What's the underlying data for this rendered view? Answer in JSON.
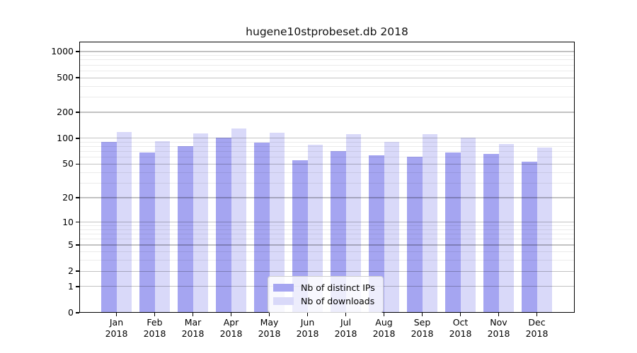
{
  "figure": {
    "title": "hugene10stprobeset.db 2018"
  },
  "chart_data": {
    "type": "bar",
    "title": "hugene10stprobeset.db 2018",
    "categories": [
      "Jan",
      "Feb",
      "Mar",
      "Apr",
      "May",
      "Jun",
      "Jul",
      "Aug",
      "Sep",
      "Oct",
      "Nov",
      "Dec"
    ],
    "year_label": "2018",
    "series": [
      {
        "name": "Nb of distinct IPs",
        "color": "#a5a5f1",
        "values": [
          91,
          68,
          81,
          101,
          89,
          55,
          71,
          63,
          61,
          69,
          66,
          53
        ]
      },
      {
        "name": "Nb of downloads",
        "color": "#d9d9f9",
        "values": [
          119,
          93,
          114,
          129,
          115,
          84,
          112,
          91,
          112,
          101,
          85,
          78
        ]
      }
    ],
    "xlabel": "",
    "ylabel": "",
    "yscale": "log1p",
    "ylim": [
      0,
      1300
    ],
    "yticks": [
      0,
      1,
      2,
      5,
      10,
      20,
      50,
      100,
      200,
      500,
      1000
    ],
    "yticks_minor": [
      3,
      4,
      6,
      7,
      8,
      9,
      30,
      40,
      60,
      70,
      80,
      90,
      300,
      400,
      600,
      700,
      800,
      900
    ],
    "grid": true,
    "legend_position": "lower center"
  },
  "colors": {
    "distinct_ips_bar": "#a5a5f1",
    "downloads_bar": "#d9d9f9",
    "major_grid": "#bfbfbf",
    "minor_grid": "#ebebeb",
    "axis": "#000000",
    "background": "#ffffff"
  }
}
